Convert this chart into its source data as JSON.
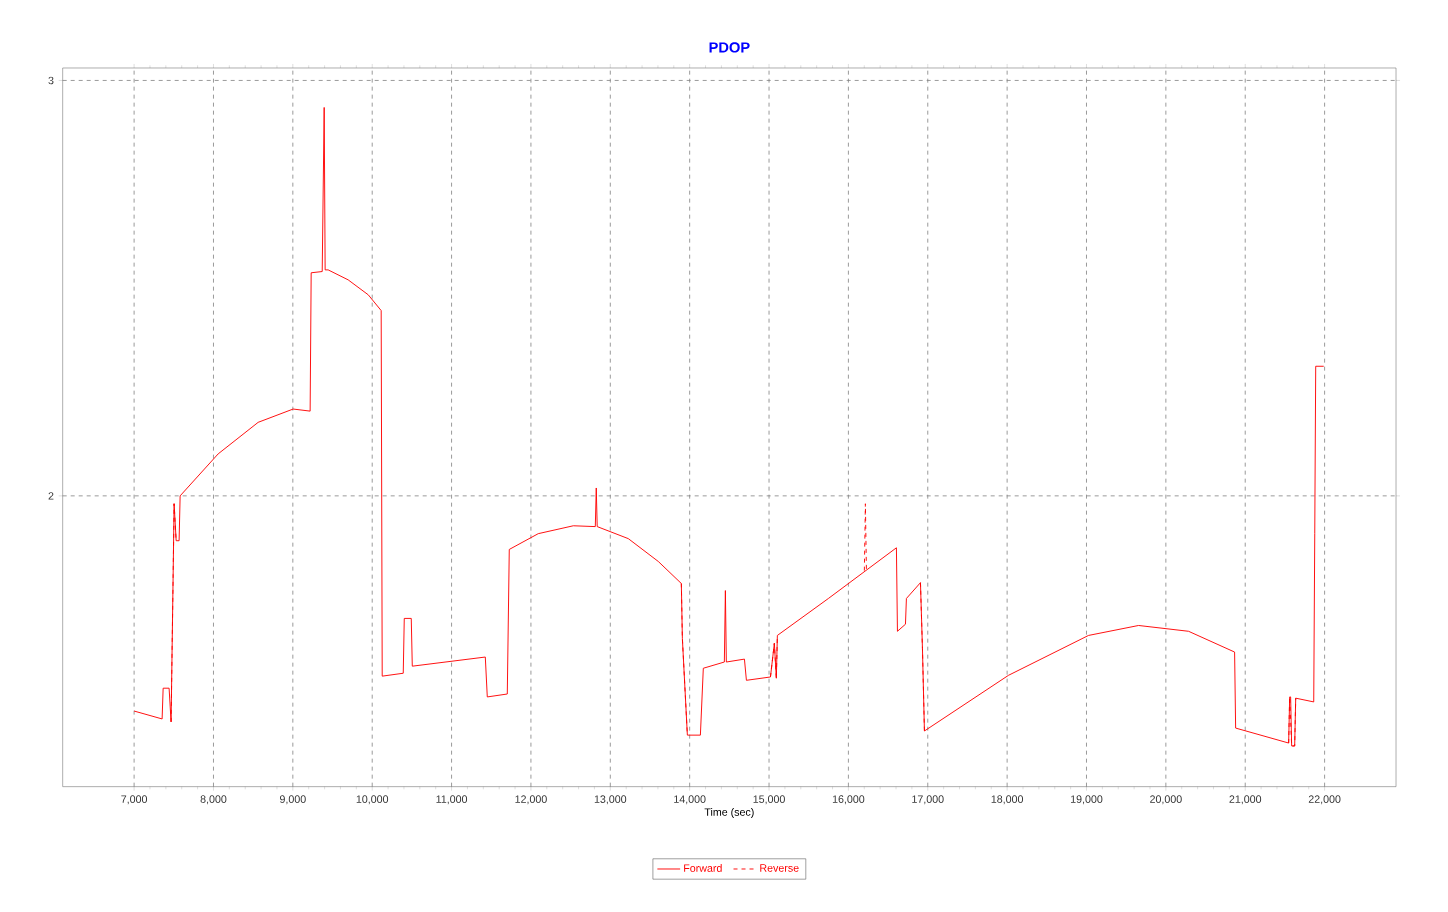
{
  "chart_data": {
    "type": "line",
    "title": "PDOP",
    "xlabel": "Time (sec)",
    "xlim": [
      6100,
      22900
    ],
    "ylim": [
      1.3,
      3.03
    ],
    "xticks": [
      {
        "value": 7000,
        "label": "7,000"
      },
      {
        "value": 8000,
        "label": "8,000"
      },
      {
        "value": 9000,
        "label": "9,000"
      },
      {
        "value": 10000,
        "label": "10,000"
      },
      {
        "value": 11000,
        "label": "11,000"
      },
      {
        "value": 12000,
        "label": "12,000"
      },
      {
        "value": 13000,
        "label": "13,000"
      },
      {
        "value": 14000,
        "label": "14,000"
      },
      {
        "value": 15000,
        "label": "15,000"
      },
      {
        "value": 16000,
        "label": "16,000"
      },
      {
        "value": 17000,
        "label": "17,000"
      },
      {
        "value": 18000,
        "label": "18,000"
      },
      {
        "value": 19000,
        "label": "19,000"
      },
      {
        "value": 20000,
        "label": "20,000"
      },
      {
        "value": 21000,
        "label": "21,000"
      },
      {
        "value": 22000,
        "label": "22,000"
      }
    ],
    "yticks": [
      2,
      3
    ],
    "grid": true,
    "legend": "bottom",
    "series": [
      {
        "name": "Forward",
        "color": "#ff0000",
        "line_style": "solid",
        "x": [
          7000,
          7353,
          7366,
          7441,
          7466,
          7492,
          7504,
          7530,
          7567,
          7580,
          8059,
          8563,
          9004,
          9218,
          9231,
          9370,
          9395,
          9407,
          9445,
          9697,
          9950,
          10113,
          10126,
          10391,
          10404,
          10492,
          10505,
          11425,
          11450,
          11702,
          11727,
          12092,
          12534,
          12811,
          12823,
          12835,
          13227,
          13605,
          13895,
          13908,
          13971,
          14135,
          14172,
          14437,
          14450,
          14462,
          14690,
          14715,
          15018,
          15067,
          15092,
          15105,
          15748,
          16605,
          16618,
          16719,
          16731,
          16908,
          16933,
          16958,
          18017,
          19025,
          19656,
          20286,
          20866,
          20879,
          21547,
          21560,
          21572,
          21585,
          21623,
          21636,
          21863,
          21876,
          21888,
          21989
        ],
        "values": [
          1.482,
          1.463,
          1.537,
          1.537,
          1.456,
          1.811,
          1.981,
          1.892,
          1.892,
          2.0,
          2.101,
          2.177,
          2.209,
          2.204,
          2.537,
          2.54,
          2.935,
          2.544,
          2.544,
          2.52,
          2.484,
          2.446,
          1.566,
          1.573,
          1.705,
          1.705,
          1.59,
          1.612,
          1.516,
          1.523,
          1.871,
          1.909,
          1.928,
          1.926,
          2.019,
          1.926,
          1.897,
          1.842,
          1.789,
          1.657,
          1.424,
          1.424,
          1.585,
          1.6,
          1.772,
          1.6,
          1.607,
          1.556,
          1.564,
          1.645,
          1.561,
          1.664,
          1.753,
          1.875,
          1.674,
          1.691,
          1.753,
          1.791,
          1.633,
          1.434,
          1.568,
          1.664,
          1.688,
          1.674,
          1.624,
          1.441,
          1.405,
          1.516,
          1.516,
          1.398,
          1.398,
          1.513,
          1.504,
          1.909,
          2.312,
          2.312
        ]
      },
      {
        "name": "Reverse",
        "color": "#ff0000",
        "line_style": "dashed",
        "x": [
          7466,
          7492,
          7504,
          7530,
          10000,
          13895,
          13908,
          13971,
          14500,
          15018,
          15067,
          15092,
          15105,
          15500,
          16201,
          16214,
          16227,
          16500,
          16908,
          16933,
          16958,
          19000,
          21547,
          21560,
          21585,
          21623,
          21636
        ],
        "values": [
          1.456,
          1.811,
          1.981,
          1.892,
          null,
          1.789,
          1.657,
          1.424,
          null,
          1.564,
          1.645,
          1.561,
          1.664,
          null,
          1.82,
          1.981,
          1.82,
          null,
          1.791,
          1.633,
          1.434,
          null,
          1.405,
          1.516,
          1.398,
          1.398,
          1.513
        ]
      }
    ]
  }
}
